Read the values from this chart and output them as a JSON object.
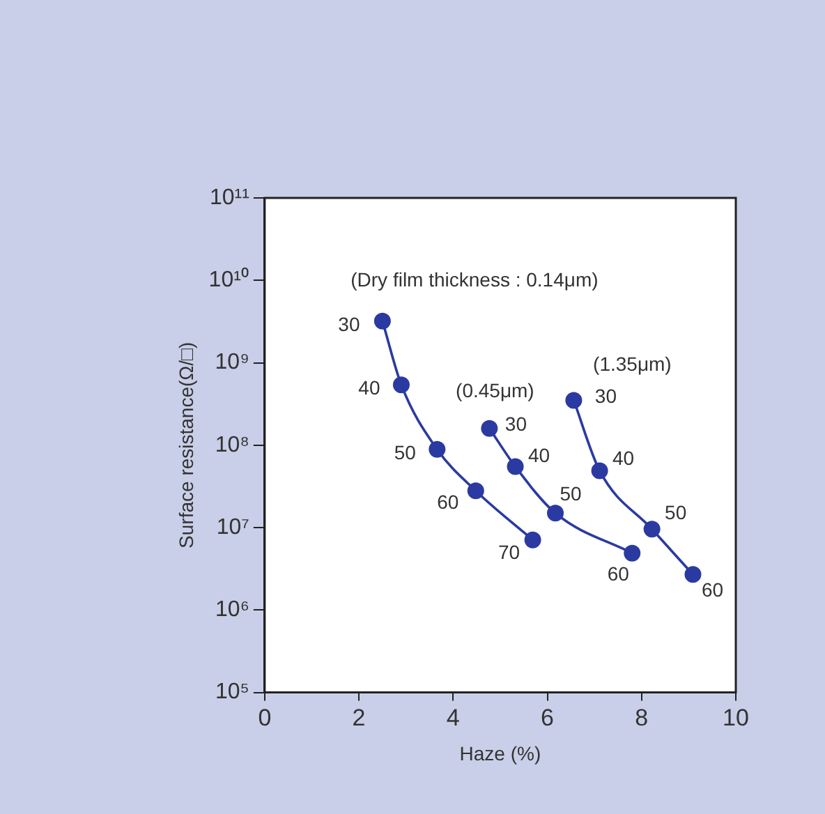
{
  "chart_data": {
    "type": "line",
    "xlabel": "Haze (%)",
    "ylabel": "Surface resistance(Ω/□)",
    "log": "y",
    "marker": "circle",
    "line_style": "solid",
    "grid": false,
    "legend": false,
    "xlim": [
      0,
      10
    ],
    "xticks": [
      0,
      2,
      4,
      6,
      8,
      10
    ],
    "ylim": [
      100000,
      100000000000
    ],
    "yticks": [
      {
        "value": 100000,
        "label": "10⁵"
      },
      {
        "value": 1000000,
        "label": "10⁶"
      },
      {
        "value": 10000000,
        "label": "10⁷"
      },
      {
        "value": 100000000,
        "label": "10⁸"
      },
      {
        "value": 1000000000,
        "label": "10⁹"
      },
      {
        "value": 10000000000,
        "label": "10¹⁰"
      },
      {
        "value": 100000000000,
        "label": "10¹¹"
      }
    ],
    "series": [
      {
        "name": "(Dry film thickness : 0.14μm)",
        "color": "#2b3aa0",
        "x": [
          2.5,
          2.9,
          3.66,
          4.48,
          5.69
        ],
        "values": [
          3200000000,
          540000000,
          89000000,
          28000000,
          7100000
        ]
      },
      {
        "name": "(0.45μm)",
        "color": "#2b3aa0",
        "x": [
          4.77,
          5.32,
          6.17,
          7.8
        ],
        "values": [
          160000000,
          55000000,
          15000000,
          4900000
        ]
      },
      {
        "name": "(1.35μm)",
        "color": "#2b3aa0",
        "x": [
          6.56,
          7.11,
          8.22,
          9.09
        ],
        "values": [
          350000000,
          49000000,
          9600000,
          2700000
        ]
      }
    ],
    "annotations": [
      {
        "text": "30",
        "x": 2.5,
        "y": 3200000000
      },
      {
        "text": "40",
        "x": 2.9,
        "y": 540000000
      },
      {
        "text": "50",
        "x": 3.66,
        "y": 89000000
      },
      {
        "text": "60",
        "x": 4.48,
        "y": 28000000
      },
      {
        "text": "70",
        "x": 5.69,
        "y": 7100000
      },
      {
        "text": "30",
        "x": 4.77,
        "y": 160000000
      },
      {
        "text": "40",
        "x": 5.32,
        "y": 55000000
      },
      {
        "text": "50",
        "x": 6.17,
        "y": 15000000
      },
      {
        "text": "60",
        "x": 7.8,
        "y": 4900000
      },
      {
        "text": "30",
        "x": 6.56,
        "y": 350000000
      },
      {
        "text": "40",
        "x": 7.11,
        "y": 49000000
      },
      {
        "text": "50",
        "x": 8.22,
        "y": 9600000
      },
      {
        "text": "60",
        "x": 9.09,
        "y": 2700000
      }
    ]
  }
}
